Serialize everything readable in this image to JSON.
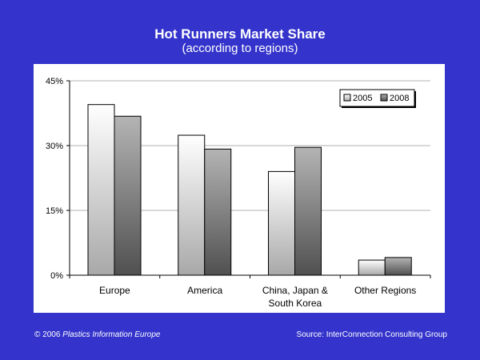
{
  "header": {
    "title": "Hot Runners Market Share",
    "subtitle": "(according to regions)"
  },
  "footer": {
    "copyright_prefix": "© 2006 ",
    "copyright_source": "Plastics Information Europe",
    "source": "Source: InterConnection Consulting Group"
  },
  "colors": {
    "background": "#3434cc",
    "panel": "#ffffff",
    "series_2005_light": "#ffffff",
    "series_2005_dark": "#a8a8a8",
    "series_2008_light": "#b4b4b4",
    "series_2008_dark": "#505050",
    "grid": "#b0b0b0"
  },
  "chart_data": {
    "type": "bar",
    "title": "Hot Runners Market Share",
    "subtitle": "(according to regions)",
    "categories": [
      "Europe",
      "America",
      "China, Japan & South Korea",
      "Other Regions"
    ],
    "category_labels": [
      [
        "Europe"
      ],
      [
        "America"
      ],
      [
        "China, Japan &",
        "South Korea"
      ],
      [
        "Other Regions"
      ]
    ],
    "series": [
      {
        "name": "2005",
        "values": [
          39.5,
          32.4,
          24.0,
          3.5
        ]
      },
      {
        "name": "2008",
        "values": [
          36.8,
          29.2,
          29.6,
          4.1
        ]
      }
    ],
    "ylim": [
      0,
      45
    ],
    "yticks": [
      0,
      15,
      30,
      45
    ],
    "ytick_labels": [
      "0%",
      "15%",
      "30%",
      "45%"
    ],
    "grid": true,
    "legend_position": "top-right"
  }
}
